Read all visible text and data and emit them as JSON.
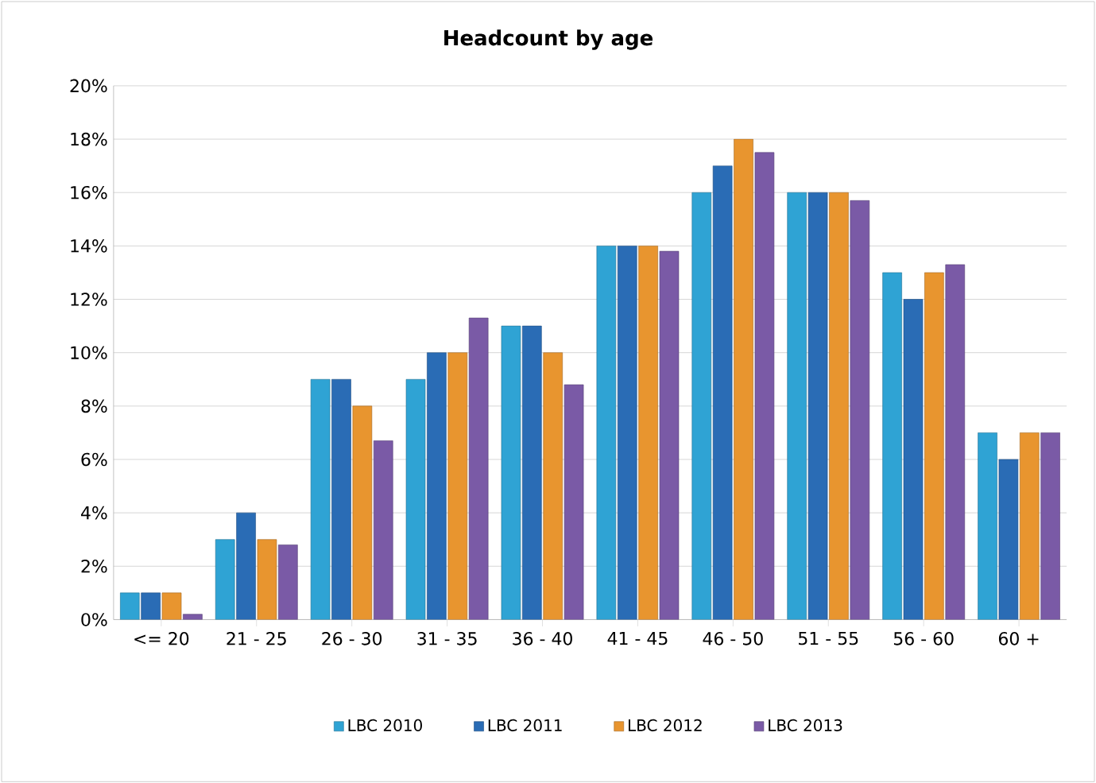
{
  "chart_data": {
    "type": "bar",
    "title": "Headcount by age",
    "categories": [
      "<= 20",
      "21 - 25",
      "26 - 30",
      "31 - 35",
      "36 - 40",
      "41 - 45",
      "46 - 50",
      "51 - 55",
      "56 - 60",
      "60 +"
    ],
    "series": [
      {
        "name": "LBC 2010",
        "color": "#2fa3d4",
        "values": [
          1,
          3,
          9,
          9,
          11,
          14,
          16,
          16,
          13,
          7
        ]
      },
      {
        "name": "LBC 2011",
        "color": "#2a6cb5",
        "values": [
          1,
          4,
          9,
          10,
          11,
          14,
          17,
          16,
          12,
          6
        ]
      },
      {
        "name": "LBC 2012",
        "color": "#e8952f",
        "values": [
          1,
          3,
          8,
          10,
          10,
          14,
          18,
          16,
          13,
          7
        ]
      },
      {
        "name": "LBC 2013",
        "color": "#7a5aa6",
        "values": [
          0.2,
          2.8,
          6.7,
          11.3,
          8.8,
          13.8,
          17.5,
          15.7,
          13.3,
          7
        ]
      }
    ],
    "ylim": [
      0,
      20
    ],
    "yticks": [
      {
        "value": 0,
        "label": "0%"
      },
      {
        "value": 2,
        "label": "2%"
      },
      {
        "value": 4,
        "label": "4%"
      },
      {
        "value": 6,
        "label": "6%"
      },
      {
        "value": 8,
        "label": "8%"
      },
      {
        "value": 10,
        "label": "10%"
      },
      {
        "value": 12,
        "label": "12%"
      },
      {
        "value": 14,
        "label": "14%"
      },
      {
        "value": 16,
        "label": "16%"
      },
      {
        "value": 18,
        "label": "18%"
      },
      {
        "value": 20,
        "label": "20%"
      }
    ],
    "grid": "y",
    "legend": "bottom"
  }
}
